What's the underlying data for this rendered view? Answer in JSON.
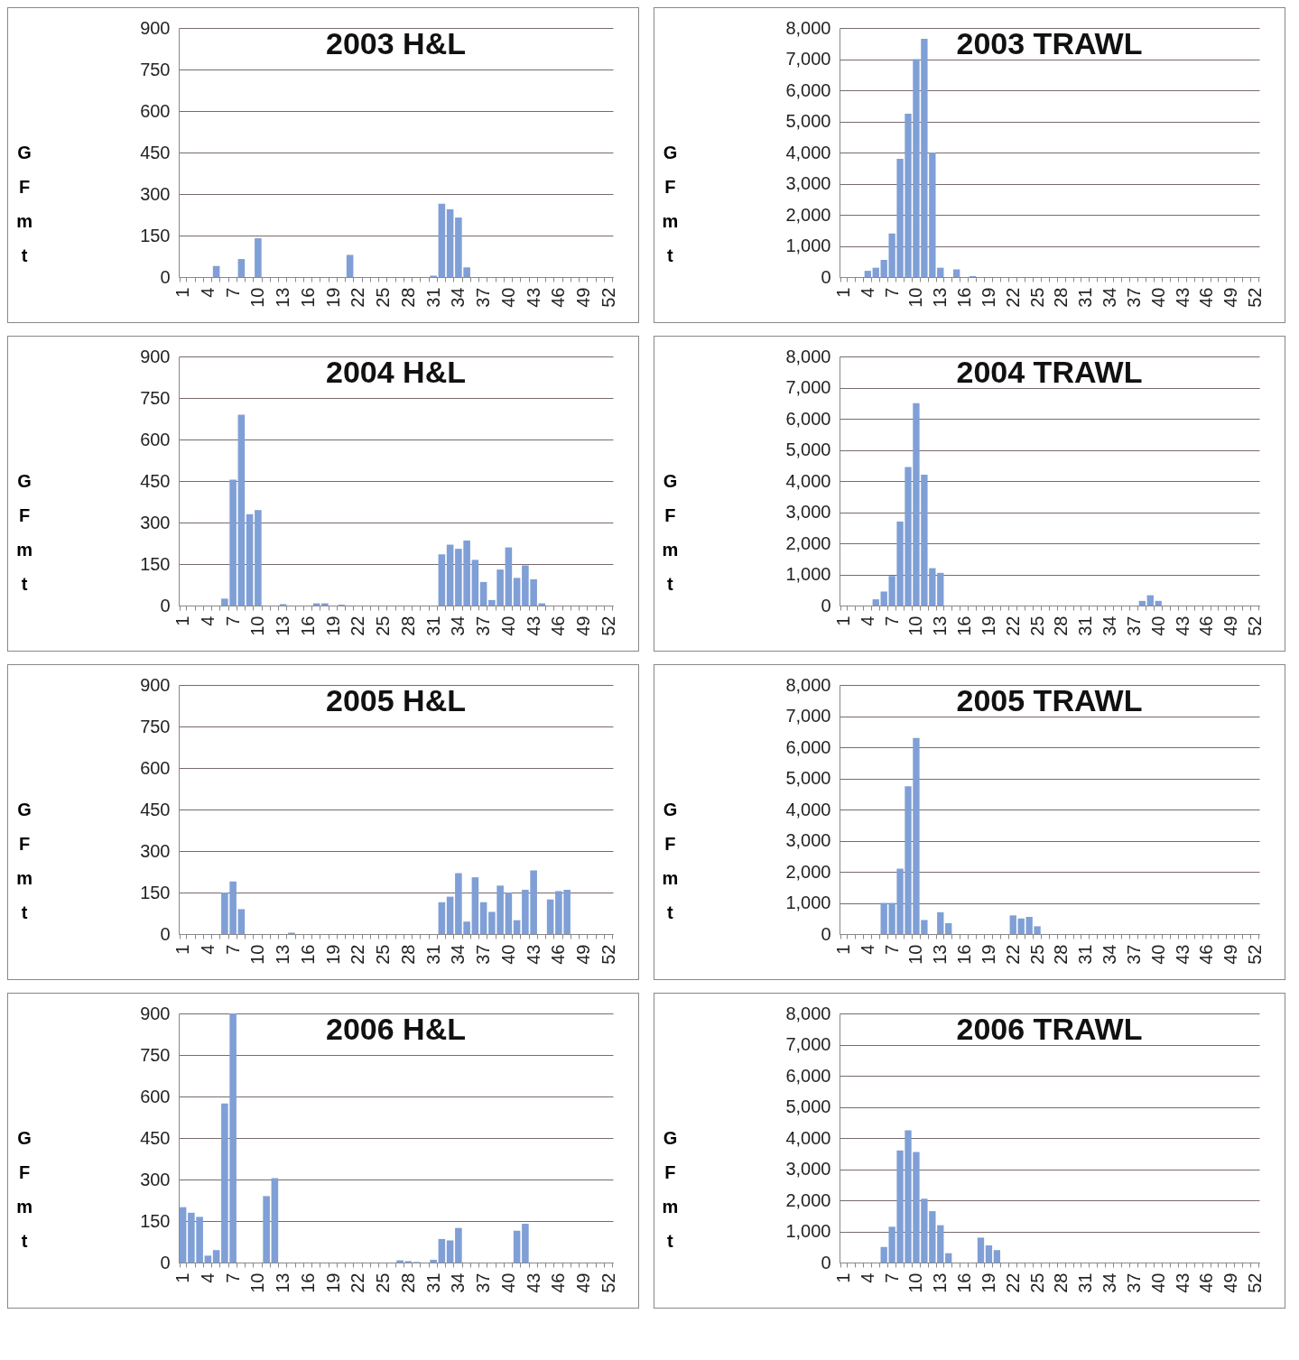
{
  "chart_data": [
    {
      "type": "bar",
      "title": "2003 H&L",
      "ylabel": "G F m t",
      "categories": [
        "1",
        null,
        null,
        "4",
        null,
        null,
        "7",
        null,
        null,
        "10",
        null,
        null,
        "13",
        null,
        null,
        "16",
        null,
        null,
        "19",
        null,
        null,
        "22",
        null,
        null,
        "25",
        null,
        null,
        "28",
        null,
        null,
        "31",
        null,
        null,
        "34",
        null,
        null,
        "37",
        null,
        null,
        "40",
        null,
        null,
        "43",
        null,
        null,
        "46",
        null,
        null,
        "49",
        null,
        null,
        "52"
      ],
      "values": [
        0,
        0,
        0,
        0,
        40,
        0,
        0,
        65,
        0,
        140,
        0,
        0,
        0,
        0,
        0,
        0,
        0,
        0,
        0,
        0,
        80,
        0,
        0,
        0,
        0,
        0,
        0,
        0,
        0,
        0,
        5,
        265,
        245,
        215,
        35,
        0,
        0,
        0,
        0,
        0,
        0,
        0,
        0,
        0,
        0,
        0,
        0,
        0,
        0,
        0,
        0,
        0
      ],
      "color": "#7f9fd6",
      "ylim": [
        0,
        900
      ],
      "yticks": [
        0,
        150,
        300,
        450,
        600,
        750,
        900
      ],
      "grid": "y"
    },
    {
      "type": "bar",
      "title": "2003 TRAWL",
      "ylabel": "G F m t",
      "categories": [
        "1",
        null,
        null,
        "4",
        null,
        null,
        "7",
        null,
        null,
        "10",
        null,
        null,
        "13",
        null,
        null,
        "16",
        null,
        null,
        "19",
        null,
        null,
        "22",
        null,
        null,
        "25",
        null,
        null,
        "28",
        null,
        null,
        "31",
        null,
        null,
        "34",
        null,
        null,
        "37",
        null,
        null,
        "40",
        null,
        null,
        "43",
        null,
        null,
        "46",
        null,
        null,
        "49",
        null,
        null,
        "52"
      ],
      "values": [
        0,
        0,
        0,
        200,
        300,
        550,
        1400,
        3800,
        5250,
        7000,
        7650,
        4000,
        300,
        0,
        250,
        0,
        30,
        0,
        0,
        0,
        0,
        0,
        0,
        0,
        0,
        0,
        0,
        0,
        0,
        0,
        0,
        0,
        0,
        0,
        0,
        0,
        0,
        0,
        0,
        0,
        0,
        0,
        0,
        0,
        0,
        0,
        0,
        0,
        0,
        0,
        0,
        0
      ],
      "color": "#7f9fd6",
      "ylim": [
        0,
        8000
      ],
      "yticks": [
        0,
        {
          "value": 1000,
          "label": "1,000"
        },
        {
          "value": 2000,
          "label": "2,000"
        },
        {
          "value": 3000,
          "label": "3,000"
        },
        {
          "value": 4000,
          "label": "4,000"
        },
        {
          "value": 5000,
          "label": "5,000"
        },
        {
          "value": 6000,
          "label": "6,000"
        },
        {
          "value": 7000,
          "label": "7,000"
        },
        {
          "value": 8000,
          "label": "8,000"
        }
      ],
      "grid": "y"
    },
    {
      "type": "bar",
      "title": "2004 H&L",
      "ylabel": "G F m t",
      "categories": [
        "1",
        null,
        null,
        "4",
        null,
        null,
        "7",
        null,
        null,
        "10",
        null,
        null,
        "13",
        null,
        null,
        "16",
        null,
        null,
        "19",
        null,
        null,
        "22",
        null,
        null,
        "25",
        null,
        null,
        "28",
        null,
        null,
        "31",
        null,
        null,
        "34",
        null,
        null,
        "37",
        null,
        null,
        "40",
        null,
        null,
        "43",
        null,
        null,
        "46",
        null,
        null,
        "49",
        null,
        null,
        "52"
      ],
      "values": [
        0,
        0,
        0,
        0,
        0,
        25,
        455,
        690,
        330,
        345,
        0,
        0,
        5,
        0,
        0,
        0,
        8,
        8,
        0,
        3,
        0,
        0,
        0,
        0,
        0,
        0,
        0,
        0,
        0,
        0,
        0,
        185,
        220,
        205,
        235,
        165,
        85,
        20,
        130,
        210,
        100,
        145,
        95,
        8,
        0,
        0,
        0,
        0,
        0,
        0,
        0,
        0
      ],
      "color": "#7f9fd6",
      "ylim": [
        0,
        900
      ],
      "yticks": [
        0,
        150,
        300,
        450,
        600,
        750,
        900
      ],
      "grid": "y"
    },
    {
      "type": "bar",
      "title": "2004 TRAWL",
      "ylabel": "G F m t",
      "categories": [
        "1",
        null,
        null,
        "4",
        null,
        null,
        "7",
        null,
        null,
        "10",
        null,
        null,
        "13",
        null,
        null,
        "16",
        null,
        null,
        "19",
        null,
        null,
        "22",
        null,
        null,
        "25",
        null,
        null,
        "28",
        null,
        null,
        "31",
        null,
        null,
        "34",
        null,
        null,
        "37",
        null,
        null,
        "40",
        null,
        null,
        "43",
        null,
        null,
        "46",
        null,
        null,
        "49",
        null,
        null,
        "52"
      ],
      "values": [
        0,
        0,
        0,
        0,
        200,
        450,
        950,
        2700,
        4450,
        6500,
        4200,
        1200,
        1050,
        0,
        0,
        0,
        0,
        0,
        0,
        0,
        0,
        0,
        0,
        0,
        0,
        0,
        0,
        0,
        0,
        0,
        0,
        0,
        0,
        0,
        0,
        0,
        0,
        150,
        330,
        150,
        0,
        0,
        0,
        0,
        0,
        0,
        0,
        0,
        0,
        0,
        0,
        0
      ],
      "color": "#7f9fd6",
      "ylim": [
        0,
        8000
      ],
      "yticks": [
        0,
        {
          "value": 1000,
          "label": "1,000"
        },
        {
          "value": 2000,
          "label": "2,000"
        },
        {
          "value": 3000,
          "label": "3,000"
        },
        {
          "value": 4000,
          "label": "4,000"
        },
        {
          "value": 5000,
          "label": "5,000"
        },
        {
          "value": 6000,
          "label": "6,000"
        },
        {
          "value": 7000,
          "label": "7,000"
        },
        {
          "value": 8000,
          "label": "8,000"
        }
      ],
      "grid": "y"
    },
    {
      "type": "bar",
      "title": "2005 H&L",
      "ylabel": "G F m t",
      "categories": [
        "1",
        null,
        null,
        "4",
        null,
        null,
        "7",
        null,
        null,
        "10",
        null,
        null,
        "13",
        null,
        null,
        "16",
        null,
        null,
        "19",
        null,
        null,
        "22",
        null,
        null,
        "25",
        null,
        null,
        "28",
        null,
        null,
        "31",
        null,
        null,
        "34",
        null,
        null,
        "37",
        null,
        null,
        "40",
        null,
        null,
        "43",
        null,
        null,
        "46",
        null,
        null,
        "49",
        null,
        null,
        "52"
      ],
      "values": [
        0,
        0,
        0,
        0,
        0,
        150,
        190,
        90,
        0,
        0,
        0,
        0,
        0,
        5,
        0,
        0,
        0,
        0,
        0,
        0,
        0,
        0,
        0,
        0,
        0,
        0,
        0,
        0,
        0,
        0,
        0,
        115,
        135,
        220,
        45,
        205,
        115,
        80,
        175,
        150,
        50,
        160,
        230,
        0,
        125,
        155,
        160,
        0,
        0,
        0,
        0,
        0
      ],
      "color": "#7f9fd6",
      "ylim": [
        0,
        900
      ],
      "yticks": [
        0,
        150,
        300,
        450,
        600,
        750,
        900
      ],
      "grid": "y"
    },
    {
      "type": "bar",
      "title": "2005 TRAWL",
      "ylabel": "G F m t",
      "categories": [
        "1",
        null,
        null,
        "4",
        null,
        null,
        "7",
        null,
        null,
        "10",
        null,
        null,
        "13",
        null,
        null,
        "16",
        null,
        null,
        "19",
        null,
        null,
        "22",
        null,
        null,
        "25",
        null,
        null,
        "28",
        null,
        null,
        "31",
        null,
        null,
        "34",
        null,
        null,
        "37",
        null,
        null,
        "40",
        null,
        null,
        "43",
        null,
        null,
        "46",
        null,
        null,
        "49",
        null,
        null,
        "52"
      ],
      "values": [
        0,
        0,
        0,
        0,
        0,
        1000,
        1000,
        2100,
        4750,
        6300,
        450,
        0,
        700,
        350,
        0,
        0,
        0,
        0,
        0,
        0,
        0,
        600,
        500,
        550,
        250,
        0,
        0,
        0,
        0,
        0,
        0,
        0,
        0,
        0,
        0,
        0,
        0,
        0,
        0,
        0,
        0,
        0,
        0,
        0,
        0,
        0,
        0,
        0,
        0,
        0,
        0,
        0
      ],
      "color": "#7f9fd6",
      "ylim": [
        0,
        8000
      ],
      "yticks": [
        0,
        {
          "value": 1000,
          "label": "1,000"
        },
        {
          "value": 2000,
          "label": "2,000"
        },
        {
          "value": 3000,
          "label": "3,000"
        },
        {
          "value": 4000,
          "label": "4,000"
        },
        {
          "value": 5000,
          "label": "5,000"
        },
        {
          "value": 6000,
          "label": "6,000"
        },
        {
          "value": 7000,
          "label": "7,000"
        },
        {
          "value": 8000,
          "label": "8,000"
        }
      ],
      "grid": "y"
    },
    {
      "type": "bar",
      "title": "2006 H&L",
      "ylabel": "G F m t",
      "categories": [
        "1",
        null,
        null,
        "4",
        null,
        null,
        "7",
        null,
        null,
        "10",
        null,
        null,
        "13",
        null,
        null,
        "16",
        null,
        null,
        "19",
        null,
        null,
        "22",
        null,
        null,
        "25",
        null,
        null,
        "28",
        null,
        null,
        "31",
        null,
        null,
        "34",
        null,
        null,
        "37",
        null,
        null,
        "40",
        null,
        null,
        "43",
        null,
        null,
        "46",
        null,
        null,
        "49",
        null,
        null,
        "52"
      ],
      "values": [
        200,
        180,
        165,
        25,
        45,
        575,
        900,
        0,
        0,
        0,
        240,
        305,
        0,
        0,
        0,
        0,
        0,
        0,
        0,
        0,
        0,
        0,
        0,
        0,
        0,
        0,
        8,
        5,
        2,
        0,
        10,
        85,
        80,
        125,
        0,
        0,
        0,
        0,
        0,
        0,
        115,
        140,
        0,
        0,
        0,
        0,
        0,
        0,
        0,
        0,
        0,
        0
      ],
      "color": "#7f9fd6",
      "ylim": [
        0,
        900
      ],
      "yticks": [
        0,
        150,
        300,
        450,
        600,
        750,
        900
      ],
      "grid": "y"
    },
    {
      "type": "bar",
      "title": "2006 TRAWL",
      "ylabel": "G F m t",
      "categories": [
        "1",
        null,
        null,
        "4",
        null,
        null,
        "7",
        null,
        null,
        "10",
        null,
        null,
        "13",
        null,
        null,
        "16",
        null,
        null,
        "19",
        null,
        null,
        "22",
        null,
        null,
        "25",
        null,
        null,
        "28",
        null,
        null,
        "31",
        null,
        null,
        "34",
        null,
        null,
        "37",
        null,
        null,
        "40",
        null,
        null,
        "43",
        null,
        null,
        "46",
        null,
        null,
        "49",
        null,
        null,
        "52"
      ],
      "values": [
        0,
        0,
        0,
        0,
        0,
        500,
        1150,
        3600,
        4250,
        3550,
        2050,
        1650,
        1200,
        300,
        0,
        0,
        0,
        800,
        550,
        400,
        0,
        0,
        0,
        0,
        0,
        0,
        0,
        0,
        0,
        0,
        0,
        0,
        0,
        0,
        0,
        0,
        0,
        0,
        0,
        0,
        0,
        0,
        0,
        0,
        0,
        0,
        0,
        0,
        0,
        0,
        0,
        0
      ],
      "color": "#7f9fd6",
      "ylim": [
        0,
        8000
      ],
      "yticks": [
        0,
        {
          "value": 1000,
          "label": "1,000"
        },
        {
          "value": 2000,
          "label": "2,000"
        },
        {
          "value": 3000,
          "label": "3,000"
        },
        {
          "value": 4000,
          "label": "4,000"
        },
        {
          "value": 5000,
          "label": "5,000"
        },
        {
          "value": 6000,
          "label": "6,000"
        },
        {
          "value": 7000,
          "label": "7,000"
        },
        {
          "value": 8000,
          "label": "8,000"
        }
      ],
      "grid": "y"
    }
  ]
}
